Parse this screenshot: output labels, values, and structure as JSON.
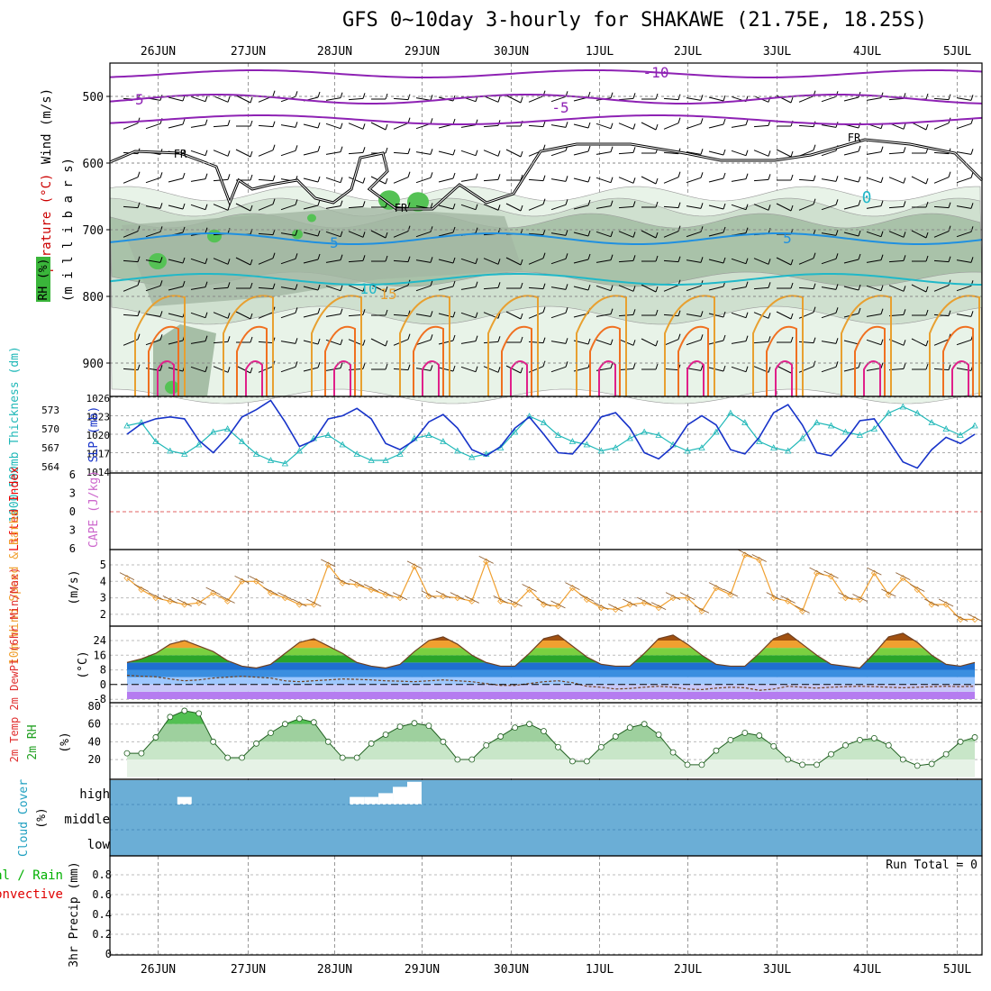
{
  "title": "GFS 0~10day 3-hourly for SHAKAWE (21.75E, 18.25S)",
  "colors": {
    "rh_green": "#3ab53a",
    "slp": "#1733c9",
    "thickness": "#20b8b8",
    "wind_speed": "#f0a030",
    "temp_purple": "#8e22b4",
    "freezing": "#000000",
    "cloud": "#6baed6",
    "precip_green": "#00c000",
    "precip_red": "#e00000",
    "lifted": "#e00000",
    "cape": "#cc66cc"
  },
  "date_labels": [
    "26JUN",
    "27JUN",
    "28JUN",
    "29JUN",
    "30JUN",
    "1JUL",
    "2JUL",
    "3JUL",
    "4JUL",
    "5JUL"
  ],
  "panels": {
    "upper": {
      "ylabel_wind": "Wind (m/s)",
      "ylabel_temp": "Temperature (°C)",
      "ylabel_rh": "RH (%)",
      "ylabel_pressure": "(m i l l i b a r s)",
      "yticks": [
        "500",
        "600",
        "700",
        "800",
        "900"
      ],
      "contour_labels": [
        "-10",
        "-5",
        "-5",
        "FR",
        "FR",
        "FR",
        "5",
        "5",
        "10",
        "15",
        "0"
      ]
    },
    "slp": {
      "ylabel_left": "1000-500mb Thickness (dm)",
      "ylabel_right": "SLP (mb)",
      "thick_ticks": [
        "573",
        "570",
        "567",
        "564"
      ],
      "slp_ticks": [
        "1026",
        "1023",
        "1020",
        "1017",
        "1014"
      ]
    },
    "li": {
      "ylabel_left": "Lifted Index",
      "ylabel_right": "CAPE (J/kg)",
      "yticks": [
        "6",
        "3",
        "0",
        "3",
        "6"
      ]
    },
    "wind": {
      "ylabel": "10m Wind Speed & Barbs",
      "unit": "(m/s)",
      "yticks": [
        "5",
        "4",
        "3",
        "2"
      ]
    },
    "temp": {
      "ylabel": "2m Temp 2m DewPt (6hr Min/Max)",
      "unit": "(°C)",
      "yticks": [
        "24",
        "16",
        "8",
        "0",
        "-8"
      ]
    },
    "rh": {
      "ylabel": "2m RH",
      "unit": "(%)",
      "yticks": [
        "80",
        "60",
        "40",
        "20"
      ]
    },
    "cloud": {
      "ylabel": "Cloud Cover",
      "unit": "(%)",
      "levels": [
        "high",
        "middle",
        "low"
      ]
    },
    "precip": {
      "ylabel_total": "Total / Rain",
      "ylabel_conv": "Convective",
      "ylabel": "3hr Precip (mm)",
      "yticks": [
        "0.8",
        "0.6",
        "0.4",
        "0.2",
        "0"
      ],
      "run_total": "Run Total = 0"
    }
  },
  "chart_data": {
    "type": "line",
    "x_start": "2025-06-25T12:00",
    "step_hours": 3,
    "categories": [
      "26JUN",
      "27JUN",
      "28JUN",
      "29JUN",
      "30JUN",
      "1JUL",
      "2JUL",
      "3JUL",
      "4JUL",
      "5JUL"
    ],
    "slp_mb": [
      1020.0,
      1021.7,
      1022.5,
      1022.8,
      1022.5,
      1019.0,
      1017.0,
      1019.5,
      1022.8,
      1024.0,
      1025.5,
      1022.0,
      1018.0,
      1019.0,
      1022.5,
      1023.0,
      1024.2,
      1022.5,
      1018.5,
      1017.5,
      1019.0,
      1022.0,
      1023.2,
      1021.0,
      1017.5,
      1016.5,
      1018.0,
      1021.0,
      1022.8,
      1020.0,
      1017.0,
      1016.8,
      1019.5,
      1022.8,
      1023.5,
      1021.0,
      1017.0,
      1016.0,
      1018.0,
      1021.5,
      1023.0,
      1021.5,
      1017.5,
      1016.8,
      1019.5,
      1023.5,
      1024.8,
      1021.5,
      1017.0,
      1016.5,
      1019.0,
      1022.2,
      1022.5,
      1019.0,
      1015.5,
      1014.5,
      1017.5,
      1019.5,
      1018.5,
      1020.0
    ],
    "thickness_dm": [
      570.5,
      571.0,
      568.0,
      566.5,
      566.0,
      567.5,
      569.5,
      570.0,
      568.0,
      566.0,
      565.0,
      564.5,
      566.5,
      568.5,
      569.0,
      567.5,
      566.0,
      565.0,
      565.0,
      566.0,
      568.5,
      569.0,
      568.0,
      566.5,
      565.5,
      566.0,
      567.0,
      569.5,
      572.0,
      571.0,
      569.0,
      568.0,
      567.5,
      566.5,
      567.0,
      568.5,
      569.5,
      569.0,
      567.5,
      566.5,
      567.0,
      569.5,
      572.5,
      571.0,
      568.0,
      567.0,
      566.5,
      568.5,
      571.0,
      570.5,
      569.5,
      569.0,
      570.0,
      572.5,
      573.5,
      572.5,
      571.0,
      570.0,
      569.0,
      570.5
    ],
    "wind_ms": [
      4.2,
      3.5,
      3.0,
      2.8,
      2.6,
      2.7,
      3.3,
      2.8,
      4.0,
      4.0,
      3.3,
      3.0,
      2.6,
      2.6,
      5.0,
      3.9,
      3.8,
      3.5,
      3.2,
      3.0,
      4.9,
      3.1,
      3.1,
      3.0,
      2.8,
      5.2,
      2.8,
      2.6,
      3.5,
      2.6,
      2.5,
      3.6,
      2.9,
      2.4,
      2.3,
      2.6,
      2.7,
      2.4,
      3.0,
      3.0,
      2.2,
      3.6,
      3.2,
      5.6,
      5.3,
      3.0,
      2.8,
      2.2,
      4.5,
      4.3,
      3.0,
      2.9,
      4.5,
      3.2,
      4.2,
      3.5,
      2.6,
      2.6,
      1.7,
      1.7
    ],
    "temp_c": [
      12,
      14,
      17,
      22,
      24,
      21,
      18,
      13,
      10,
      9,
      11,
      17,
      23,
      25,
      21,
      17,
      12,
      10,
      9,
      11,
      18,
      24,
      26,
      22,
      16,
      12,
      10,
      10,
      17,
      25,
      27,
      21,
      15,
      11,
      10,
      10,
      17,
      25,
      27,
      22,
      16,
      11,
      10,
      10,
      17,
      25,
      28,
      22,
      16,
      11,
      10,
      9,
      17,
      26,
      28,
      23,
      16,
      11,
      10,
      12
    ],
    "dewpt_c": [
      5.0,
      4.5,
      4.2,
      3.0,
      2.0,
      2.5,
      3.5,
      4.0,
      4.5,
      4.0,
      3.5,
      2.0,
      1.5,
      2.0,
      2.5,
      3.0,
      2.8,
      2.5,
      2.0,
      1.8,
      1.5,
      2.0,
      2.5,
      2.0,
      1.5,
      0.5,
      -0.5,
      -0.5,
      0.5,
      1.5,
      2.0,
      1.0,
      -1.0,
      -1.5,
      -2.5,
      -2.2,
      -1.5,
      -1.0,
      -1.5,
      -2.5,
      -2.8,
      -2.0,
      -1.5,
      -1.8,
      -3.2,
      -2.5,
      -1.0,
      -1.5,
      -2.0,
      -1.5,
      -1.2,
      -1.0,
      -1.2,
      -1.5,
      -1.8,
      -1.5,
      -1.2,
      -1.0,
      -1.2,
      -1.0
    ],
    "rh_pct": [
      27,
      27,
      45,
      68,
      75,
      72,
      40,
      22,
      22,
      38,
      50,
      60,
      66,
      62,
      40,
      22,
      22,
      38,
      48,
      57,
      61,
      58,
      40,
      20,
      20,
      36,
      46,
      56,
      60,
      52,
      34,
      18,
      18,
      34,
      46,
      56,
      60,
      48,
      28,
      14,
      14,
      30,
      42,
      50,
      47,
      35,
      20,
      14,
      14,
      26,
      36,
      42,
      44,
      36,
      20,
      13,
      15,
      26,
      40,
      45
    ],
    "cloud_high_pct": [
      0,
      0,
      0,
      0,
      30,
      0,
      0,
      0,
      0,
      0,
      0,
      0,
      0,
      0,
      0,
      0,
      30,
      30,
      45,
      70,
      90,
      0,
      0,
      0,
      0,
      0,
      0,
      0,
      0,
      0,
      0,
      0,
      0,
      0,
      0,
      0,
      0,
      0,
      0,
      0,
      0,
      0,
      0,
      0,
      0,
      0,
      0,
      0,
      0,
      0,
      0,
      0,
      0,
      0,
      0,
      0,
      0,
      0,
      0,
      0
    ],
    "precip_mm": 0,
    "lifted_index": [],
    "cape": [],
    "contours": {
      "temp_c": [
        -10,
        -5,
        0,
        5,
        10,
        15,
        20
      ],
      "rh_pct": [
        10,
        30,
        50,
        70,
        90
      ]
    }
  }
}
